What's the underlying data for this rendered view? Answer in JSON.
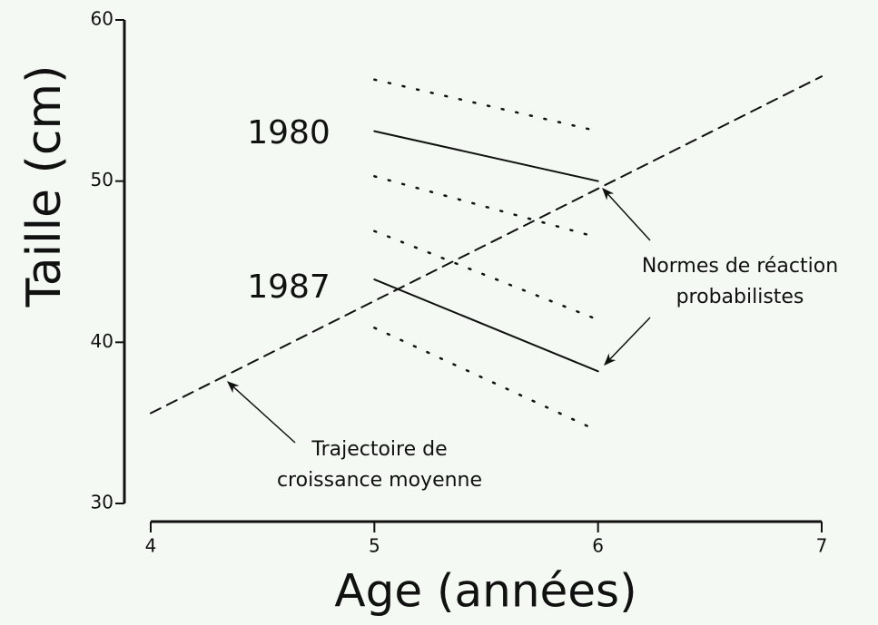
{
  "chart_data": {
    "type": "line",
    "x_label": "Age (années)",
    "y_label": "Taille (cm)",
    "xlim": [
      4,
      7
    ],
    "xticks": [
      4,
      5,
      6,
      7
    ],
    "ylim": [
      30,
      60
    ],
    "yticks": [
      30,
      40,
      50,
      60
    ],
    "series": [
      {
        "color": "#111111",
        "style": "dashed",
        "x": [
          4,
          7
        ],
        "values": [
          35.6,
          56.5
        ]
      },
      {
        "color": "#111111",
        "style": "solid",
        "x": [
          5,
          6
        ],
        "values": [
          53.1,
          50.0
        ]
      },
      {
        "color": "#111111",
        "style": "solid",
        "x": [
          5,
          6
        ],
        "values": [
          43.9,
          38.2
        ]
      },
      {
        "color": "#111111",
        "style": "dotted",
        "x": [
          5,
          6
        ],
        "values": [
          56.3,
          53.1
        ]
      },
      {
        "color": "#111111",
        "style": "dotted",
        "x": [
          5,
          6
        ],
        "values": [
          50.3,
          46.5
        ]
      },
      {
        "color": "#111111",
        "style": "dotted",
        "x": [
          5,
          6
        ],
        "values": [
          46.9,
          41.4
        ]
      },
      {
        "color": "#111111",
        "style": "dotted",
        "x": [
          5,
          6
        ],
        "values": [
          40.9,
          34.5
        ]
      }
    ],
    "annotations": [
      {
        "text": [
          "1980"
        ]
      },
      {
        "text": [
          "1987"
        ]
      },
      {
        "text": [
          "Normes de réaction",
          "probabilistes"
        ]
      },
      {
        "text": [
          "Trajectoire de",
          "croissance moyenne"
        ]
      }
    ]
  }
}
